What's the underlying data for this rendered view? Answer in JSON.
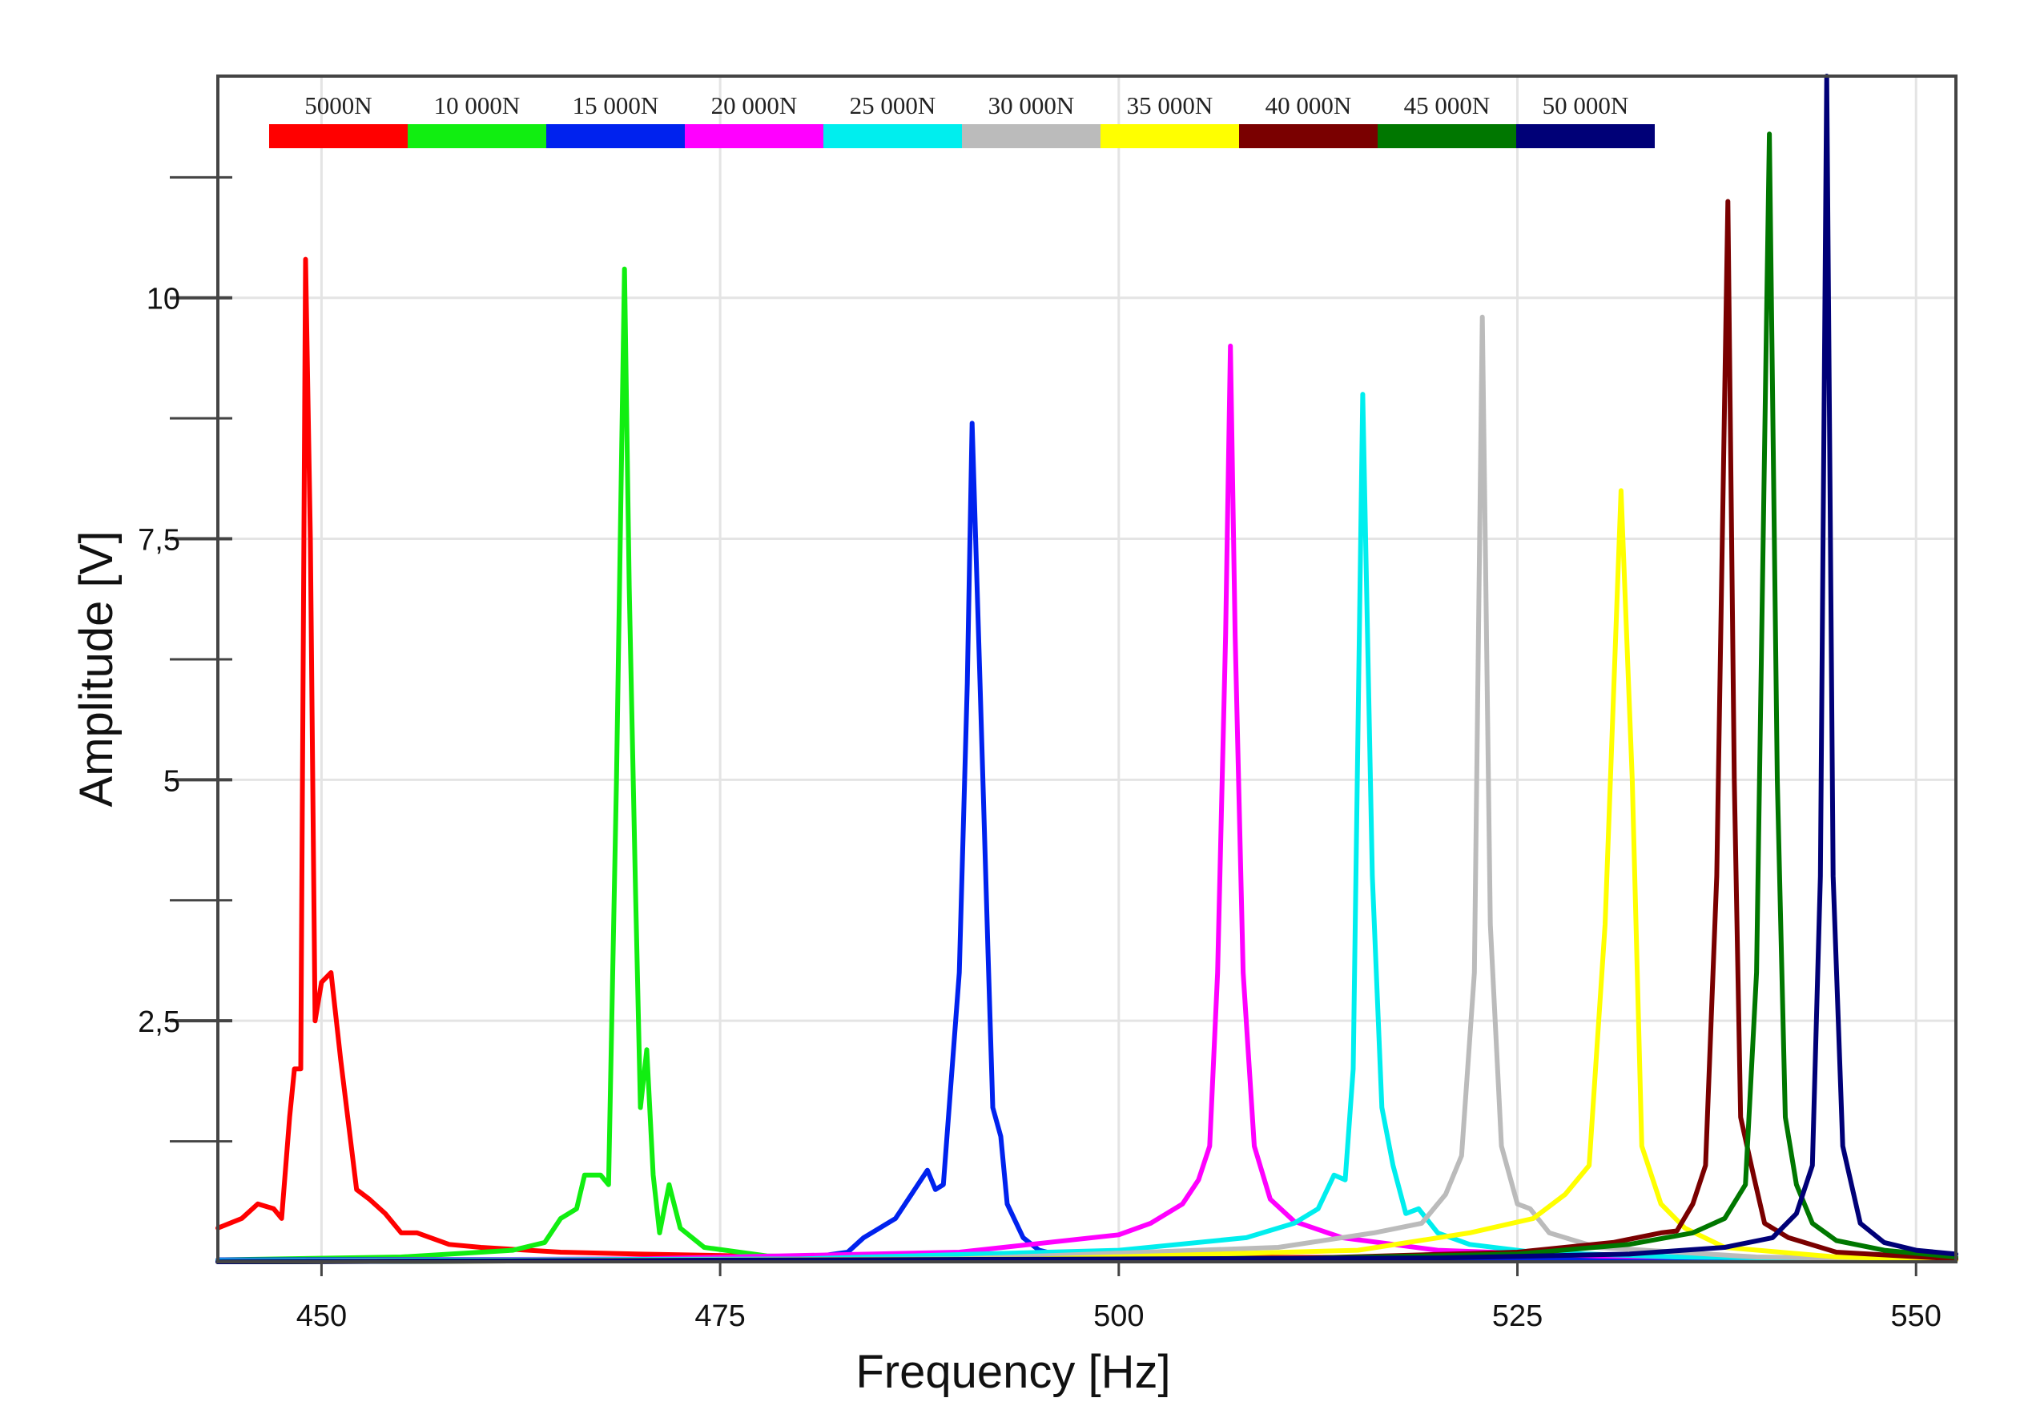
{
  "chart_data": {
    "type": "line",
    "title": "",
    "xlabel": "Frequency [Hz]",
    "ylabel": "Amplitude [V]",
    "xlim": [
      443.5,
      552.5
    ],
    "ylim": [
      0,
      12.3
    ],
    "grid": true,
    "legend_position": "top",
    "xticks": [
      450,
      475,
      500,
      525,
      550
    ],
    "xtick_labels": [
      "450",
      "475",
      "500",
      "525",
      "550"
    ],
    "yticks": [
      2.5,
      5,
      7.5,
      10
    ],
    "ytick_labels": [
      "2,5",
      "5",
      "7,5",
      "10"
    ],
    "series": [
      {
        "name": "5000N",
        "color": "#ff0000",
        "points": [
          [
            443.5,
            0.35
          ],
          [
            445,
            0.45
          ],
          [
            446,
            0.6
          ],
          [
            447,
            0.55
          ],
          [
            447.5,
            0.45
          ],
          [
            448,
            1.5
          ],
          [
            448.3,
            2.0
          ],
          [
            448.7,
            2.0
          ],
          [
            449,
            10.4
          ],
          [
            449.3,
            7.5
          ],
          [
            449.6,
            2.5
          ],
          [
            450,
            2.9
          ],
          [
            450.6,
            3.0
          ],
          [
            451.2,
            2.1
          ],
          [
            452.2,
            0.75
          ],
          [
            453,
            0.65
          ],
          [
            454,
            0.5
          ],
          [
            455,
            0.3
          ],
          [
            456,
            0.3
          ],
          [
            458,
            0.18
          ],
          [
            460,
            0.15
          ],
          [
            465,
            0.1
          ],
          [
            470,
            0.08
          ],
          [
            480,
            0.05
          ],
          [
            552.5,
            0.04
          ]
        ]
      },
      {
        "name": "10 000N",
        "color": "#11ee11",
        "points": [
          [
            443.5,
            0.02
          ],
          [
            455,
            0.05
          ],
          [
            462,
            0.12
          ],
          [
            464,
            0.2
          ],
          [
            465,
            0.45
          ],
          [
            466,
            0.55
          ],
          [
            466.5,
            0.9
          ],
          [
            467.5,
            0.9
          ],
          [
            468,
            0.8
          ],
          [
            468.5,
            5.0
          ],
          [
            469,
            10.3
          ],
          [
            469.3,
            7.0
          ],
          [
            469.7,
            3.8
          ],
          [
            470,
            1.6
          ],
          [
            470.4,
            2.2
          ],
          [
            470.8,
            0.9
          ],
          [
            471.2,
            0.3
          ],
          [
            471.8,
            0.8
          ],
          [
            472.5,
            0.35
          ],
          [
            474,
            0.15
          ],
          [
            478,
            0.06
          ],
          [
            485,
            0.04
          ],
          [
            552.5,
            0.03
          ]
        ]
      },
      {
        "name": "15 000N",
        "color": "#0022ee",
        "points": [
          [
            443.5,
            0.02
          ],
          [
            480,
            0.03
          ],
          [
            483,
            0.1
          ],
          [
            484,
            0.25
          ],
          [
            485,
            0.35
          ],
          [
            486,
            0.45
          ],
          [
            487,
            0.7
          ],
          [
            488,
            0.95
          ],
          [
            488.5,
            0.75
          ],
          [
            489,
            0.8
          ],
          [
            490,
            3.0
          ],
          [
            490.5,
            6.0
          ],
          [
            490.8,
            8.7
          ],
          [
            491.3,
            6.0
          ],
          [
            491.8,
            3.2
          ],
          [
            492.1,
            1.6
          ],
          [
            492.6,
            1.3
          ],
          [
            493,
            0.6
          ],
          [
            494,
            0.25
          ],
          [
            495,
            0.12
          ],
          [
            496,
            0.08
          ],
          [
            497,
            0.05
          ],
          [
            500,
            0.03
          ],
          [
            552.5,
            0.02
          ]
        ]
      },
      {
        "name": "20 000N",
        "color": "#ff00ff",
        "points": [
          [
            443.5,
            0.01
          ],
          [
            470,
            0.03
          ],
          [
            490,
            0.1
          ],
          [
            500,
            0.28
          ],
          [
            502,
            0.4
          ],
          [
            504,
            0.6
          ],
          [
            505,
            0.85
          ],
          [
            505.7,
            1.2
          ],
          [
            506.2,
            3.0
          ],
          [
            506.7,
            6.5
          ],
          [
            507,
            9.5
          ],
          [
            507.3,
            6.5
          ],
          [
            507.8,
            3.0
          ],
          [
            508.5,
            1.2
          ],
          [
            509.5,
            0.65
          ],
          [
            511,
            0.42
          ],
          [
            514,
            0.25
          ],
          [
            520,
            0.12
          ],
          [
            530,
            0.06
          ],
          [
            552.5,
            0.02
          ]
        ]
      },
      {
        "name": "25 000N",
        "color": "#00eeee",
        "points": [
          [
            443.5,
            0.01
          ],
          [
            480,
            0.03
          ],
          [
            500,
            0.12
          ],
          [
            508,
            0.25
          ],
          [
            511,
            0.4
          ],
          [
            512.5,
            0.55
          ],
          [
            513.5,
            0.9
          ],
          [
            514.2,
            0.85
          ],
          [
            514.7,
            2.0
          ],
          [
            515.3,
            9.0
          ],
          [
            515.9,
            4.0
          ],
          [
            516.5,
            1.6
          ],
          [
            517.2,
            1.0
          ],
          [
            518,
            0.5
          ],
          [
            518.8,
            0.55
          ],
          [
            520,
            0.3
          ],
          [
            522,
            0.18
          ],
          [
            526,
            0.1
          ],
          [
            535,
            0.05
          ],
          [
            552.5,
            0.02
          ]
        ]
      },
      {
        "name": "30 000N",
        "color": "#bbbbbb",
        "points": [
          [
            443.5,
            0.0
          ],
          [
            490,
            0.03
          ],
          [
            510,
            0.15
          ],
          [
            516,
            0.3
          ],
          [
            519,
            0.4
          ],
          [
            520.5,
            0.7
          ],
          [
            521.5,
            1.1
          ],
          [
            522.3,
            3.0
          ],
          [
            522.8,
            9.8
          ],
          [
            523.3,
            3.5
          ],
          [
            524,
            1.2
          ],
          [
            525,
            0.6
          ],
          [
            525.8,
            0.55
          ],
          [
            527,
            0.3
          ],
          [
            530,
            0.15
          ],
          [
            540,
            0.05
          ],
          [
            552.5,
            0.02
          ]
        ]
      },
      {
        "name": "35 000N",
        "color": "#ffff00",
        "points": [
          [
            443.5,
            0.0
          ],
          [
            495,
            0.03
          ],
          [
            515,
            0.12
          ],
          [
            522,
            0.3
          ],
          [
            526,
            0.45
          ],
          [
            528,
            0.7
          ],
          [
            529.5,
            1.0
          ],
          [
            530.5,
            3.5
          ],
          [
            531.5,
            8.0
          ],
          [
            532.2,
            5.0
          ],
          [
            532.8,
            1.2
          ],
          [
            534,
            0.6
          ],
          [
            535.5,
            0.35
          ],
          [
            538,
            0.15
          ],
          [
            545,
            0.05
          ],
          [
            552.5,
            0.02
          ]
        ]
      },
      {
        "name": "40 000N",
        "color": "#7a0000",
        "points": [
          [
            443.5,
            0.0
          ],
          [
            510,
            0.03
          ],
          [
            525,
            0.1
          ],
          [
            531,
            0.2
          ],
          [
            534,
            0.3
          ],
          [
            535,
            0.32
          ],
          [
            536,
            0.6
          ],
          [
            536.8,
            1.0
          ],
          [
            537.5,
            4.0
          ],
          [
            538.2,
            11.0
          ],
          [
            538.6,
            5.0
          ],
          [
            539,
            1.5
          ],
          [
            539.8,
            0.9
          ],
          [
            540.5,
            0.4
          ],
          [
            542,
            0.25
          ],
          [
            545,
            0.1
          ],
          [
            552.5,
            0.03
          ]
        ]
      },
      {
        "name": "45 000N",
        "color": "#007700",
        "points": [
          [
            443.5,
            0.0
          ],
          [
            510,
            0.03
          ],
          [
            525,
            0.08
          ],
          [
            532,
            0.18
          ],
          [
            536,
            0.3
          ],
          [
            538,
            0.45
          ],
          [
            539.3,
            0.8
          ],
          [
            540,
            3.0
          ],
          [
            540.8,
            11.7
          ],
          [
            541.3,
            5.0
          ],
          [
            541.8,
            1.5
          ],
          [
            542.5,
            0.8
          ],
          [
            543.5,
            0.4
          ],
          [
            545,
            0.22
          ],
          [
            548,
            0.12
          ],
          [
            552.5,
            0.05
          ]
        ]
      },
      {
        "name": "50 000N",
        "color": "#000077",
        "points": [
          [
            443.5,
            0.0
          ],
          [
            520,
            0.04
          ],
          [
            532,
            0.08
          ],
          [
            538,
            0.15
          ],
          [
            541,
            0.25
          ],
          [
            542.5,
            0.5
          ],
          [
            543.5,
            1.0
          ],
          [
            544,
            4.0
          ],
          [
            544.4,
            12.3
          ],
          [
            544.8,
            4.0
          ],
          [
            545.4,
            1.2
          ],
          [
            546.5,
            0.4
          ],
          [
            548,
            0.2
          ],
          [
            550,
            0.12
          ],
          [
            552.5,
            0.08
          ]
        ]
      }
    ]
  }
}
